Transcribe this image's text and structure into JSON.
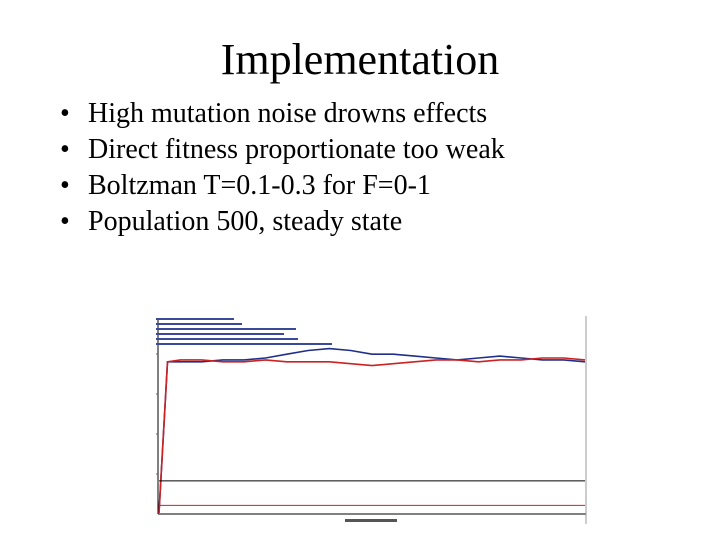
{
  "slide": {
    "title": "Implementation",
    "bullets": [
      {
        "text": "High mutation noise drowns effects"
      },
      {
        "text": "Direct fitness proportionate too weak"
      },
      {
        "text": "Boltzman T=0.1-0.3 for F=0-1"
      },
      {
        "text": "Population 500, steady state"
      }
    ],
    "bullet_glyph": "•"
  },
  "chart_data": {
    "type": "line",
    "grid": false,
    "legend_placement": "top-left",
    "colors": {
      "blue": "#1f2f8a",
      "red": "#cc2222",
      "axis": "#000000"
    },
    "x": [
      0,
      0.02,
      0.05,
      0.1,
      0.15,
      0.2,
      0.25,
      0.3,
      0.35,
      0.4,
      0.45,
      0.5,
      0.55,
      0.6,
      0.65,
      0.7,
      0.75,
      0.8,
      0.85,
      0.9,
      0.95,
      1.0
    ],
    "series": [
      {
        "color": "blue",
        "values": [
          0.0,
          0.8,
          0.8,
          0.8,
          0.81,
          0.81,
          0.82,
          0.84,
          0.86,
          0.87,
          0.86,
          0.84,
          0.84,
          0.83,
          0.82,
          0.81,
          0.82,
          0.83,
          0.82,
          0.81,
          0.81,
          0.8
        ]
      },
      {
        "color": "red",
        "values": [
          0.0,
          0.8,
          0.81,
          0.81,
          0.8,
          0.8,
          0.81,
          0.8,
          0.8,
          0.8,
          0.79,
          0.78,
          0.79,
          0.8,
          0.81,
          0.81,
          0.8,
          0.81,
          0.81,
          0.82,
          0.82,
          0.81
        ]
      },
      {
        "color": "black",
        "values": [
          0.17,
          0.17,
          0.17,
          0.17,
          0.17,
          0.17,
          0.17,
          0.17,
          0.17,
          0.17,
          0.17,
          0.17,
          0.17,
          0.17,
          0.17,
          0.17,
          0.17,
          0.17,
          0.17,
          0.17,
          0.17,
          0.17
        ]
      },
      {
        "color": "red",
        "values": [
          0.04,
          0.04,
          0.04,
          0.04,
          0.04,
          0.04,
          0.04,
          0.04,
          0.04,
          0.04,
          0.04,
          0.04,
          0.04,
          0.04,
          0.04,
          0.04,
          0.04,
          0.04,
          0.04,
          0.04,
          0.04,
          0.04
        ]
      }
    ],
    "ylim": [
      0,
      1
    ],
    "xlim": [
      0,
      1
    ]
  }
}
